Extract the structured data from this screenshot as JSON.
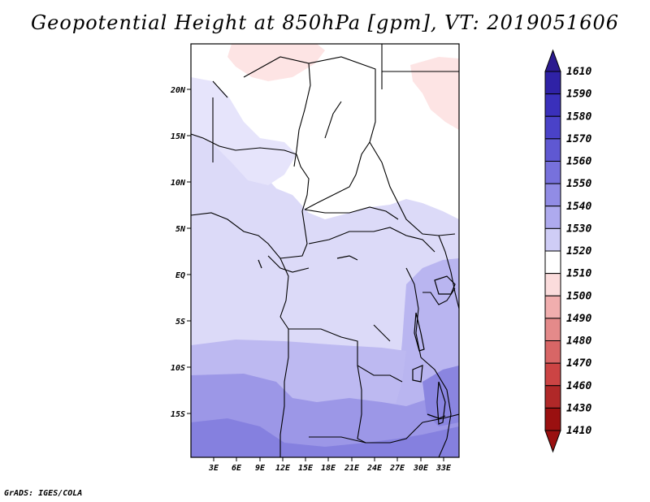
{
  "title": "Geopotential Height at 850hPa [gpm], VT: 2019051606",
  "footer": "GrADS: IGES/COLA",
  "map": {
    "lat_labels": [
      "20N",
      "15N",
      "10N",
      "5N",
      "EQ",
      "5S",
      "10S",
      "15S"
    ],
    "lon_labels": [
      "3E",
      "6E",
      "9E",
      "12E",
      "15E",
      "18E",
      "21E",
      "24E",
      "27E",
      "30E",
      "33E"
    ]
  },
  "colorbar": {
    "levels": [
      "1610",
      "1590",
      "1580",
      "1570",
      "1560",
      "1550",
      "1540",
      "1530",
      "1520",
      "1510",
      "1500",
      "1490",
      "1480",
      "1470",
      "1460",
      "1430",
      "1410"
    ],
    "colors": [
      "#2b1a8f",
      "#2f22a6",
      "#3a30bb",
      "#4a42c8",
      "#5f58d2",
      "#7771dc",
      "#918ce5",
      "#aeaaee",
      "#cfcdf6",
      "#ffffff",
      "#fbdcdc",
      "#f1aeae",
      "#e48a8a",
      "#d86666",
      "#cc4444",
      "#b02828",
      "#9a1010"
    ]
  }
}
